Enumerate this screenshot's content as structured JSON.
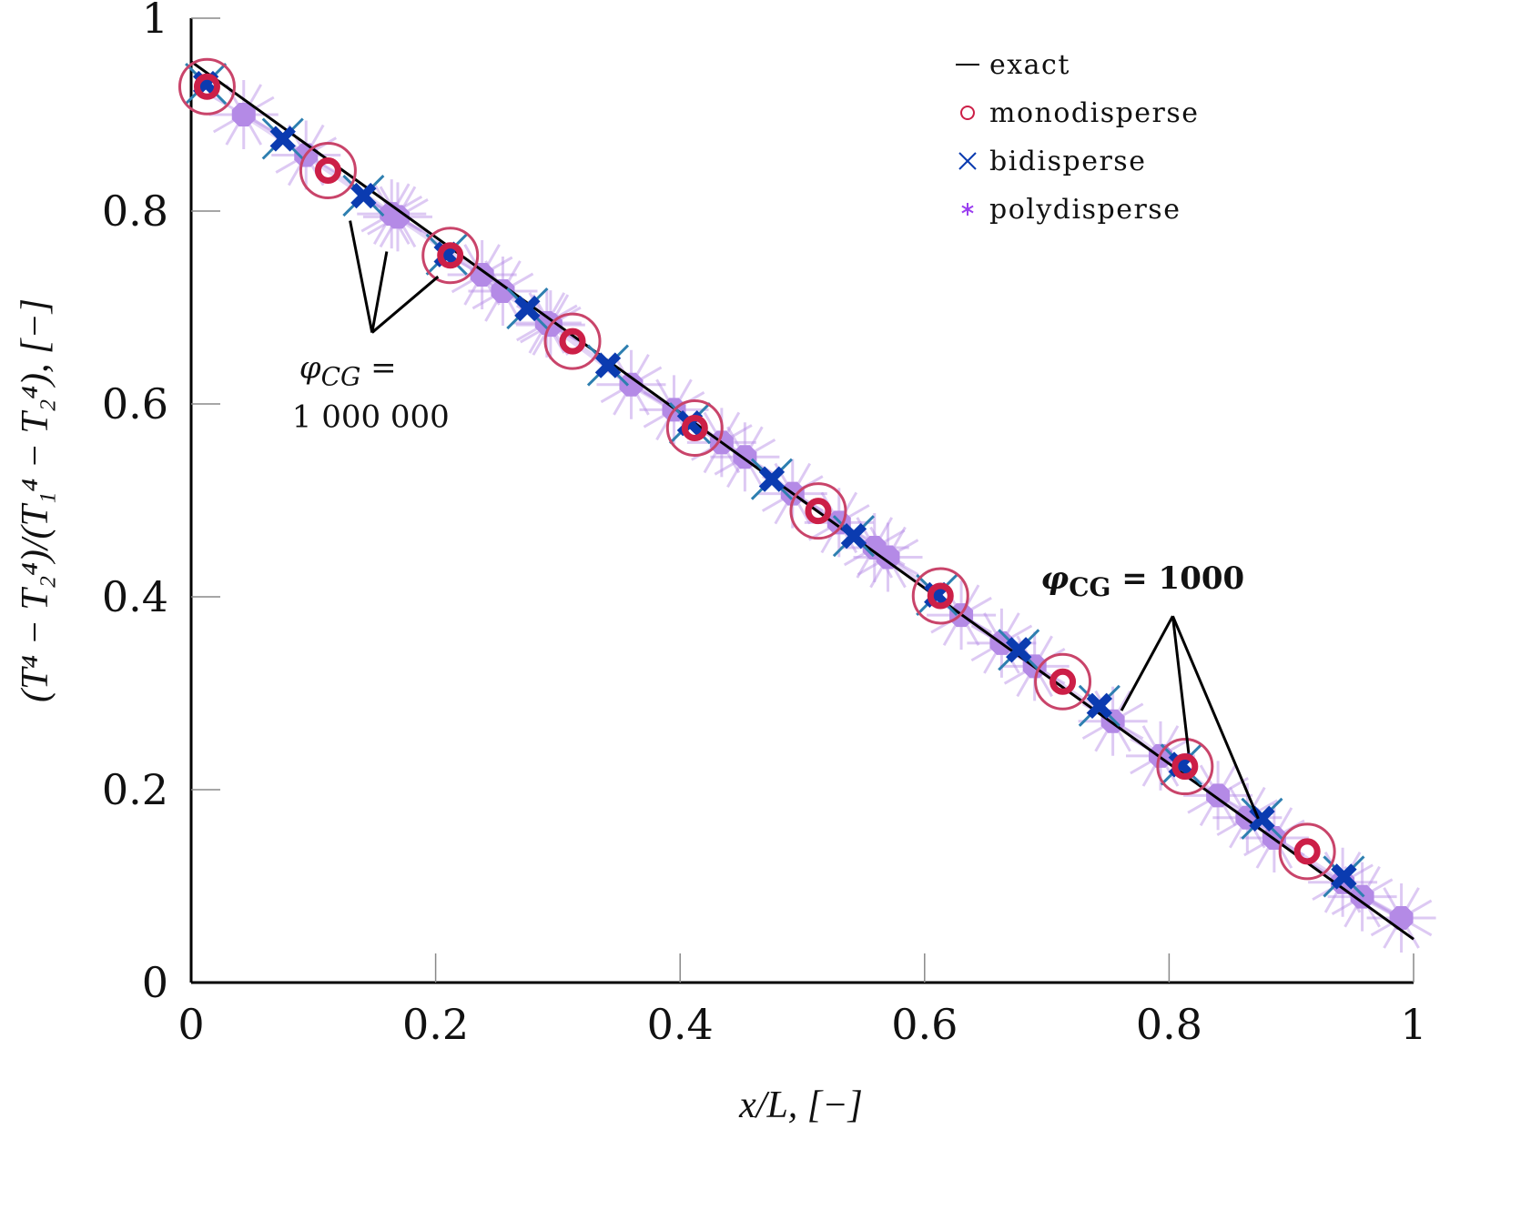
{
  "chart_data": {
    "type": "scatter",
    "title": "",
    "xlabel": "x/L, [−]",
    "ylabel": "(T⁴ − T₂⁴)/(T₁⁴ − T₂⁴), [−]",
    "xlim": [
      0,
      1
    ],
    "ylim": [
      0,
      1
    ],
    "grid": false,
    "x_ticks": [
      0,
      0.2,
      0.4,
      0.6,
      0.8,
      1
    ],
    "x_tick_labels": [
      "0",
      "0.2",
      "0.4",
      "0.6",
      "0.8",
      "1"
    ],
    "y_ticks": [
      0,
      0.2,
      0.4,
      0.6,
      0.8,
      1
    ],
    "y_tick_labels": [
      "0",
      "0.2",
      "0.4",
      "0.6",
      "0.8",
      "1"
    ],
    "legend_position": "top-right",
    "series": [
      {
        "name": "exact",
        "kind": "line",
        "color": "#000000",
        "x": [
          0,
          1
        ],
        "y": [
          0.955,
          0.045
        ]
      },
      {
        "name": "monodisperse",
        "kind": "circle",
        "color": "#cc1f47",
        "x": [
          0.013,
          0.112,
          0.212,
          0.312,
          0.412,
          0.513,
          0.613,
          0.713,
          0.813,
          0.913
        ],
        "y": [
          0.929,
          0.842,
          0.754,
          0.665,
          0.575,
          0.489,
          0.401,
          0.312,
          0.224,
          0.136
        ]
      },
      {
        "name": "bidisperse",
        "kind": "cross",
        "color": "#0b3bb0",
        "x": [
          0.012,
          0.075,
          0.141,
          0.209,
          0.275,
          0.341,
          0.408,
          0.475,
          0.542,
          0.61,
          0.677,
          0.743,
          0.81,
          0.876,
          0.943
        ],
        "y": [
          0.932,
          0.875,
          0.816,
          0.755,
          0.699,
          0.64,
          0.58,
          0.522,
          0.463,
          0.402,
          0.345,
          0.287,
          0.226,
          0.17,
          0.11
        ]
      },
      {
        "name": "polydisperse",
        "kind": "asterisk",
        "color": "#b48ae6",
        "x": [
          0.043,
          0.094,
          0.164,
          0.169,
          0.238,
          0.255,
          0.291,
          0.294,
          0.36,
          0.395,
          0.434,
          0.453,
          0.492,
          0.53,
          0.559,
          0.57,
          0.63,
          0.663,
          0.69,
          0.754,
          0.793,
          0.84,
          0.864,
          0.886,
          0.942,
          0.958,
          0.99
        ],
        "y": [
          0.9,
          0.858,
          0.797,
          0.794,
          0.734,
          0.717,
          0.684,
          0.682,
          0.62,
          0.594,
          0.56,
          0.545,
          0.507,
          0.477,
          0.451,
          0.441,
          0.381,
          0.352,
          0.328,
          0.271,
          0.235,
          0.194,
          0.171,
          0.15,
          0.104,
          0.089,
          0.067
        ]
      }
    ],
    "annotations": [
      {
        "text_symbol": "φ",
        "text_sub": "CG",
        "text_rest": " =",
        "text_line2": "1 000 000",
        "anchor": [
          0.148,
          0.674
        ],
        "targets": [
          [
            0.13,
            0.79
          ],
          [
            0.16,
            0.758
          ],
          [
            0.202,
            0.732
          ]
        ]
      },
      {
        "text_symbol": "φ",
        "text_sub": "CG",
        "text_rest": " = 1000",
        "anchor": [
          0.803,
          0.38
        ],
        "targets": [
          [
            0.761,
            0.282
          ],
          [
            0.816,
            0.238
          ],
          [
            0.873,
            0.17
          ]
        ]
      }
    ]
  }
}
